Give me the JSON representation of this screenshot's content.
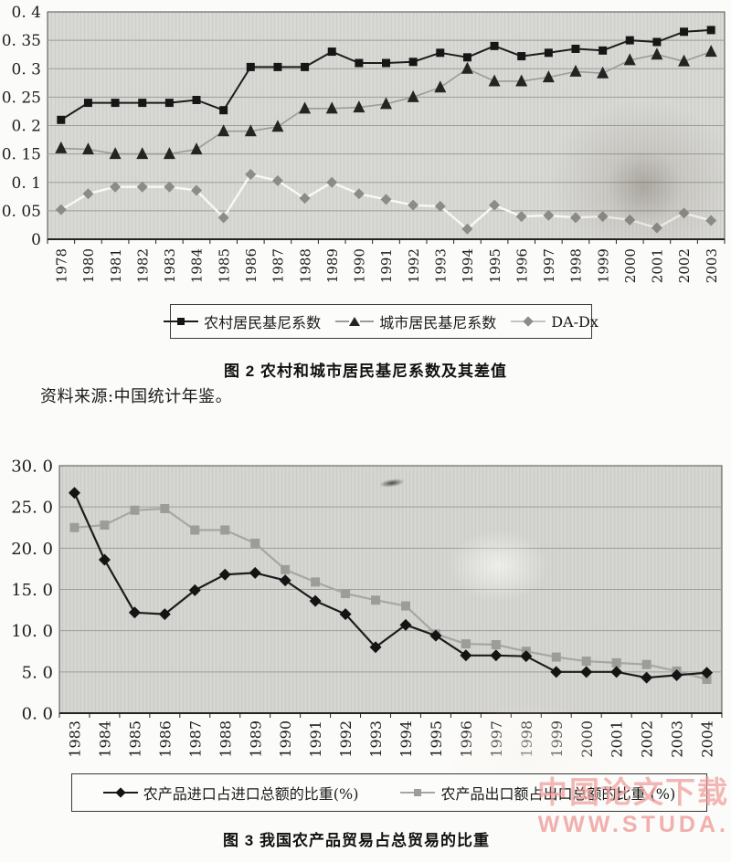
{
  "page": {
    "figure2_caption": "图 2  农村和城市居民基尼系数及其差值",
    "source_note": "资料来源:中国统计年鉴。",
    "figure3_caption": "图 3  我国农产品贸易占总贸易的比重",
    "watermark_line1": "中国论文下载",
    "watermark_line2": "WWW.STUDA.",
    "watermark_color": "#ef9d9b"
  },
  "chart_data": [
    {
      "type": "line",
      "title": "图 2 农村和城市居民基尼系数及其差值",
      "categories": [
        "1978",
        "1980",
        "1981",
        "1982",
        "1983",
        "1984",
        "1985",
        "1986",
        "1987",
        "1988",
        "1989",
        "1990",
        "1991",
        "1992",
        "1993",
        "1994",
        "1995",
        "1996",
        "1997",
        "1998",
        "1999",
        "2000",
        "2001",
        "2002",
        "2003"
      ],
      "ylim": [
        0,
        0.4
      ],
      "ytick_labels": [
        "0. 4",
        "0. 35",
        "0. 3",
        "0. 25",
        "0. 2",
        "0. 15",
        "0. 1",
        "0. 05",
        "0"
      ],
      "grid": true,
      "legend_position": "bottom",
      "plot_bg": "#d7d7d3",
      "series": [
        {
          "id": "rural-gini",
          "name": "农村居民基尼系数",
          "marker": "square",
          "marker_color": "#161616",
          "line_color": "#1c1c1c",
          "legend_line_color": "#1c1c1c",
          "line_width": 2,
          "marker_size": 9,
          "values": [
            0.21,
            0.24,
            0.24,
            0.24,
            0.24,
            0.245,
            0.227,
            0.303,
            0.303,
            0.303,
            0.33,
            0.31,
            0.31,
            0.312,
            0.328,
            0.32,
            0.34,
            0.322,
            0.328,
            0.335,
            0.332,
            0.35,
            0.347,
            0.365,
            0.368
          ]
        },
        {
          "id": "urban-gini",
          "name": "城市居民基尼系数",
          "marker": "triangle",
          "marker_color": "#242424",
          "line_color": "#9b9b97",
          "legend_line_color": "#9b9b97",
          "line_width": 1.6,
          "marker_size": 13,
          "values": [
            0.16,
            0.158,
            0.15,
            0.15,
            0.15,
            0.158,
            0.19,
            0.19,
            0.198,
            0.23,
            0.23,
            0.232,
            0.238,
            0.25,
            0.267,
            0.3,
            0.278,
            0.278,
            0.285,
            0.295,
            0.292,
            0.315,
            0.325,
            0.313,
            0.33
          ]
        },
        {
          "id": "da-dx",
          "name": "DA-Dx",
          "marker": "diamond",
          "marker_color": "#8b8b87",
          "line_color": "#f8f8f4",
          "legend_line_color": "#c4c4c0",
          "line_width": 2.4,
          "marker_size": 12,
          "values": [
            0.052,
            0.08,
            0.092,
            0.092,
            0.092,
            0.086,
            0.038,
            0.114,
            0.103,
            0.072,
            0.1,
            0.08,
            0.07,
            0.06,
            0.058,
            0.018,
            0.06,
            0.04,
            0.042,
            0.038,
            0.04,
            0.034,
            0.02,
            0.046,
            0.033
          ]
        }
      ]
    },
    {
      "type": "line",
      "title": "图 3 我国农产品贸易占总贸易的比重",
      "categories": [
        "1983",
        "1984",
        "1985",
        "1986",
        "1987",
        "1988",
        "1989",
        "1990",
        "1991",
        "1992",
        "1993",
        "1994",
        "1995",
        "1996",
        "1997",
        "1998",
        "1999",
        "2000",
        "2001",
        "2002",
        "2003",
        "2004"
      ],
      "ylim": [
        0,
        30
      ],
      "ytick_labels": [
        "30. 0",
        "25. 0",
        "20. 0",
        "15. 0",
        "10. 0",
        "5. 0",
        "0. 0"
      ],
      "grid": true,
      "legend_position": "bottom",
      "plot_bg": "#d4d4d0",
      "series": [
        {
          "id": "agri-import-share",
          "name": "农产品进口占进口总额的比重(%)",
          "marker": "diamond",
          "marker_color": "#141414",
          "line_color": "#1c1c1c",
          "legend_line_color": "#1c1c1c",
          "line_width": 2.2,
          "marker_size": 13,
          "values": [
            26.7,
            18.6,
            12.2,
            12.0,
            14.9,
            16.8,
            17.0,
            16.1,
            13.6,
            12.0,
            8.0,
            10.7,
            9.4,
            7.0,
            7.0,
            6.9,
            5.0,
            5.0,
            5.0,
            4.3,
            4.6,
            4.9
          ]
        },
        {
          "id": "agri-export-share",
          "name": "农产品出口额占出口总额的比重 (%)",
          "marker": "square",
          "marker_color": "#9c9c98",
          "line_color": "#a6a6a2",
          "legend_line_color": "#a6a6a2",
          "line_width": 2.2,
          "marker_size": 10,
          "values": [
            22.5,
            22.8,
            24.6,
            24.8,
            22.2,
            22.2,
            20.6,
            17.4,
            15.9,
            14.5,
            13.7,
            13.0,
            9.6,
            8.4,
            8.3,
            7.5,
            6.8,
            6.3,
            6.1,
            5.9,
            5.1,
            4.1
          ]
        }
      ]
    }
  ]
}
